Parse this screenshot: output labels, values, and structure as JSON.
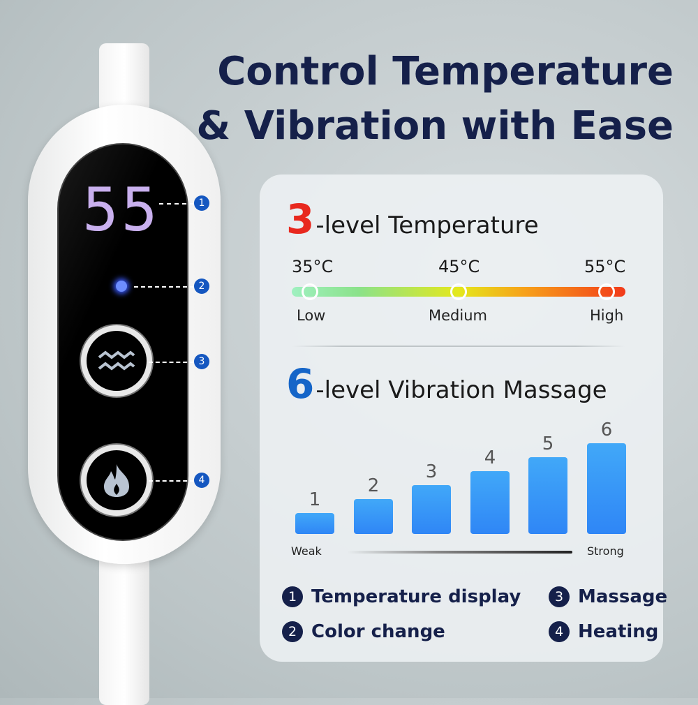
{
  "title": {
    "line1": "Control Temperature",
    "line2": "& Vibration with Ease"
  },
  "device": {
    "display": "55",
    "callouts": [
      "1",
      "2",
      "3",
      "4"
    ],
    "icons": [
      "wave-icon",
      "flame-icon"
    ]
  },
  "temperature": {
    "level_count": "3",
    "heading": "-level Temperature",
    "temps": [
      "35°C",
      "45°C",
      "55°C"
    ],
    "labels": [
      "Low",
      "Medium",
      "High"
    ],
    "count_color": "#e8281e"
  },
  "vibration": {
    "level_count": "6",
    "heading": "-level Vibration Massage",
    "count_color": "#1565c8",
    "weak": "Weak",
    "strong": "Strong",
    "levels": [
      {
        "label": "1",
        "value": 1
      },
      {
        "label": "2",
        "value": 2
      },
      {
        "label": "3",
        "value": 3
      },
      {
        "label": "4",
        "value": 4
      },
      {
        "label": "5",
        "value": 5
      },
      {
        "label": "6",
        "value": 6
      }
    ]
  },
  "legend": [
    {
      "num": "1",
      "text": "Temperature display"
    },
    {
      "num": "2",
      "text": "Color change"
    },
    {
      "num": "3",
      "text": "Massage"
    },
    {
      "num": "4",
      "text": "Heating"
    }
  ]
}
